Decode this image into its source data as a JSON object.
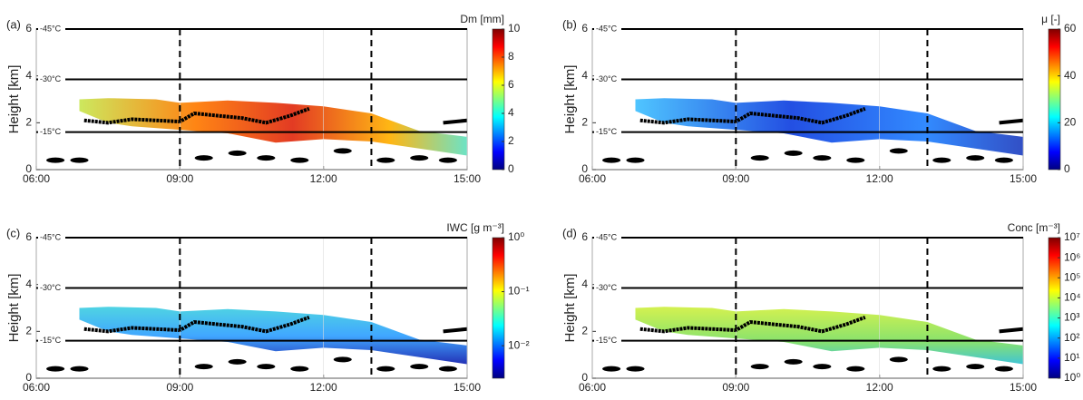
{
  "chart_data": [
    {
      "type": "heatmap",
      "panel_label": "(a)",
      "ylabel": "Height [km]",
      "ylim": [
        0,
        6
      ],
      "yticks": [
        0,
        2,
        4,
        6
      ],
      "xlim": [
        6,
        15
      ],
      "xticks": [
        {
          "value": 6,
          "label": "06:00"
        },
        {
          "value": 9,
          "label": "09:00"
        },
        {
          "value": 12,
          "label": "12:00"
        },
        {
          "value": 15,
          "label": "15:00"
        }
      ],
      "isotherms": [
        {
          "value": 6,
          "label": "-45°C"
        },
        {
          "value": 3.85,
          "label": "-30°C"
        },
        {
          "value": 1.6,
          "label": "-15°C"
        }
      ],
      "vlines": [
        9,
        13
      ],
      "colorbar": {
        "title": "Dm [mm]",
        "log": false,
        "lim": [
          0,
          10
        ],
        "ticks": [
          0,
          2,
          4,
          6,
          8,
          10
        ]
      }
    },
    {
      "type": "heatmap",
      "panel_label": "(b)",
      "ylabel": "Height [km]",
      "ylim": [
        0,
        6
      ],
      "yticks": [
        0,
        2,
        4,
        6
      ],
      "xlim": [
        6,
        15
      ],
      "xticks": [
        {
          "value": 6,
          "label": "06:00"
        },
        {
          "value": 9,
          "label": "09:00"
        },
        {
          "value": 12,
          "label": "12:00"
        },
        {
          "value": 15,
          "label": "15:00"
        }
      ],
      "isotherms": [
        {
          "value": 6,
          "label": "-45°C"
        },
        {
          "value": 3.85,
          "label": "-30°C"
        },
        {
          "value": 1.6,
          "label": "-15°C"
        }
      ],
      "vlines": [
        9,
        13
      ],
      "colorbar": {
        "title": "μ [-]",
        "log": false,
        "lim": [
          0,
          60
        ],
        "ticks": [
          0,
          20,
          40,
          60
        ]
      }
    },
    {
      "type": "heatmap",
      "panel_label": "(c)",
      "ylabel": "Height [km]",
      "ylim": [
        0,
        6
      ],
      "yticks": [
        0,
        2,
        4,
        6
      ],
      "xlim": [
        6,
        15
      ],
      "xticks": [
        {
          "value": 6,
          "label": "06:00"
        },
        {
          "value": 9,
          "label": "09:00"
        },
        {
          "value": 12,
          "label": "12:00"
        },
        {
          "value": 15,
          "label": "15:00"
        }
      ],
      "isotherms": [
        {
          "value": 6,
          "label": "-45°C"
        },
        {
          "value": 3.85,
          "label": "-30°C"
        },
        {
          "value": 1.6,
          "label": "-15°C"
        }
      ],
      "vlines": [
        9,
        13
      ],
      "colorbar": {
        "title": "IWC [g m⁻³]",
        "log": true,
        "lim": [
          0.0025,
          1
        ],
        "ticks": [
          {
            "value": 1,
            "label": "10⁰"
          },
          {
            "value": 0.1,
            "label": "10⁻¹"
          },
          {
            "value": 0.01,
            "label": "10⁻²"
          }
        ]
      }
    },
    {
      "type": "heatmap",
      "panel_label": "(d)",
      "ylabel": "Height [km]",
      "ylim": [
        0,
        6
      ],
      "yticks": [
        0,
        2,
        4,
        6
      ],
      "xlim": [
        6,
        15
      ],
      "xticks": [
        {
          "value": 6,
          "label": "06:00"
        },
        {
          "value": 9,
          "label": "09:00"
        },
        {
          "value": 12,
          "label": "12:00"
        },
        {
          "value": 15,
          "label": "15:00"
        }
      ],
      "isotherms": [
        {
          "value": 6,
          "label": "-45°C"
        },
        {
          "value": 3.85,
          "label": "-30°C"
        },
        {
          "value": 1.6,
          "label": "-15°C"
        }
      ],
      "vlines": [
        9,
        13
      ],
      "colorbar": {
        "title": "Conc [m⁻³]",
        "log": true,
        "lim": [
          1,
          10000000
        ],
        "ticks": [
          {
            "value": 1,
            "label": "10⁰"
          },
          {
            "value": 10,
            "label": "10¹"
          },
          {
            "value": 100,
            "label": "10²"
          },
          {
            "value": 1000,
            "label": "10³"
          },
          {
            "value": 10000,
            "label": "10⁴"
          },
          {
            "value": 100000,
            "label": "10⁵"
          },
          {
            "value": 1000000,
            "label": "10⁶"
          },
          {
            "value": 10000000,
            "label": "10⁷"
          }
        ]
      }
    }
  ]
}
